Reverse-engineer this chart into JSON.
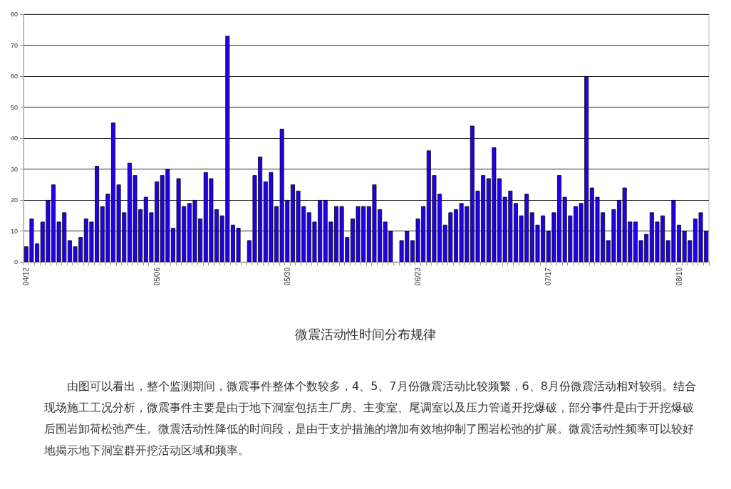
{
  "chart_data": {
    "type": "bar",
    "title": "微震活动性时间分布规律",
    "categories": [
      "04/12",
      null,
      null,
      null,
      null,
      null,
      null,
      null,
      null,
      null,
      null,
      null,
      null,
      null,
      null,
      null,
      null,
      null,
      null,
      null,
      null,
      null,
      null,
      null,
      "05/06",
      null,
      null,
      null,
      null,
      null,
      null,
      null,
      null,
      null,
      null,
      null,
      null,
      null,
      null,
      null,
      null,
      null,
      null,
      null,
      null,
      null,
      null,
      null,
      "05/30",
      null,
      null,
      null,
      null,
      null,
      null,
      null,
      null,
      null,
      null,
      null,
      null,
      null,
      null,
      null,
      null,
      null,
      null,
      null,
      null,
      null,
      null,
      null,
      "06/23",
      null,
      null,
      null,
      null,
      null,
      null,
      null,
      null,
      null,
      null,
      null,
      null,
      null,
      null,
      null,
      null,
      null,
      null,
      null,
      null,
      null,
      null,
      null,
      "07/17",
      null,
      null,
      null,
      null,
      null,
      null,
      null,
      null,
      null,
      null,
      null,
      null,
      null,
      null,
      null,
      null,
      null,
      null,
      null,
      null,
      null,
      null,
      null,
      "08/10",
      null,
      null,
      null,
      null,
      null
    ],
    "values": [
      5,
      14,
      6,
      13,
      20,
      25,
      13,
      16,
      7,
      5,
      8,
      14,
      13,
      31,
      18,
      22,
      45,
      25,
      16,
      32,
      28,
      17,
      21,
      16,
      26,
      28,
      30,
      11,
      27,
      18,
      19,
      20,
      14,
      29,
      27,
      17,
      15,
      73,
      12,
      11,
      null,
      7,
      28,
      34,
      26,
      29,
      18,
      43,
      20,
      25,
      23,
      18,
      16,
      13,
      20,
      20,
      13,
      18,
      18,
      8,
      14,
      18,
      18,
      18,
      25,
      17,
      13,
      10,
      null,
      7,
      10,
      7,
      14,
      18,
      36,
      28,
      22,
      12,
      16,
      17,
      19,
      18,
      44,
      23,
      28,
      27,
      37,
      27,
      21,
      23,
      19,
      15,
      22,
      16,
      12,
      15,
      10,
      16,
      28,
      21,
      15,
      18,
      19,
      60,
      24,
      21,
      16,
      7,
      17,
      20,
      24,
      13,
      13,
      7,
      9,
      16,
      13,
      15,
      7,
      20,
      12,
      10,
      7,
      14,
      16,
      10
    ],
    "color": "#2200ee",
    "ylim": [
      0,
      80
    ],
    "yticks": [
      0,
      10,
      20,
      30,
      40,
      50,
      60,
      70,
      80
    ],
    "grid": "y",
    "annotations": [
      "由图可以看出，整个监测期间，微震事件整体个数较多，4、5、7月份微震活动比较频繁，6、8月份微震活动相对较弱。结合现场施工工况分析，微震事件主要是由于地下洞室包括主厂房、主变室、尾调室以及压力管道开挖爆破，部分事件是由于开挖爆破后围岩卸荷松弛产生。微震活动性降低的时间段，是由于支护措施的增加有效地抑制了围岩松弛的扩展。微震活动性频率可以较好地揭示地下洞室群开挖活动区域和频率。"
    ]
  }
}
